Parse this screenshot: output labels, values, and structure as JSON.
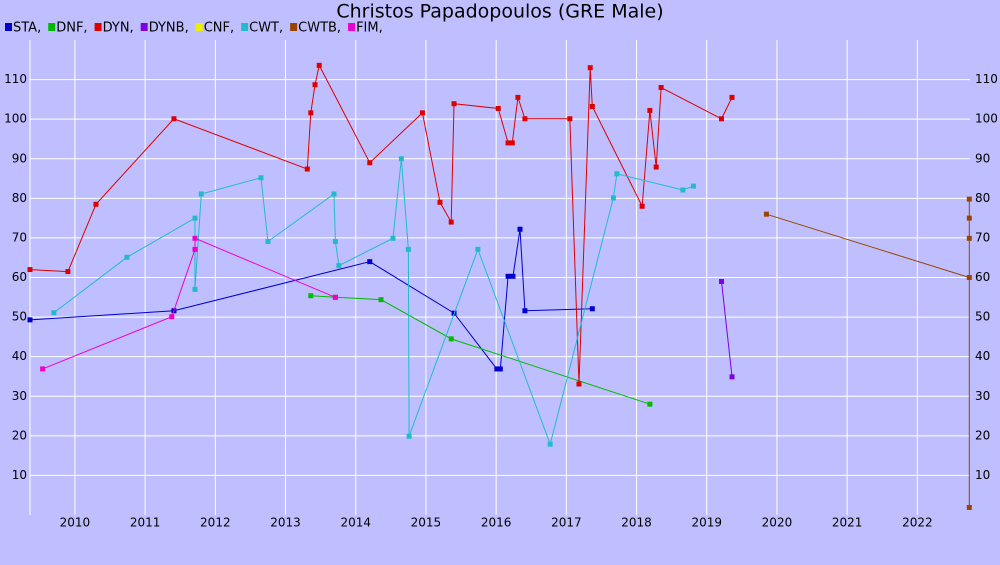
{
  "chart_data": {
    "type": "line",
    "title": "Christos Papadopoulos (GRE Male)",
    "xlim": [
      2009.36,
      2022.75
    ],
    "ylim": [
      0,
      120
    ],
    "xticks": [
      2010,
      2011,
      2012,
      2013,
      2014,
      2015,
      2016,
      2017,
      2018,
      2019,
      2020,
      2021,
      2022
    ],
    "yticks": [
      10,
      20,
      30,
      40,
      50,
      60,
      70,
      80,
      90,
      100,
      110
    ],
    "grid": true,
    "series": [
      {
        "name": "STA,",
        "color": "#0000cc",
        "x": [
          2009.36,
          2011.41,
          2014.2,
          2015.4,
          2016.01,
          2016.06,
          2016.17,
          2016.24,
          2016.34,
          2016.41,
          2017.37
        ],
        "values": [
          49.3,
          51.6,
          64,
          51,
          36.9,
          36.9,
          60.3,
          60.3,
          72.2,
          51.6,
          52.1
        ]
      },
      {
        "name": "DNF,",
        "color": "#00bb00",
        "x": [
          2013.36,
          2013.71,
          2014.36,
          2015.36,
          2018.19
        ],
        "values": [
          55.4,
          55,
          54.4,
          44.5,
          28
        ]
      },
      {
        "name": "DYN,",
        "color": "#dd0000",
        "x": [
          2009.36,
          2009.9,
          2010.3,
          2011.41,
          2013.31,
          2013.36,
          2013.42,
          2013.48,
          2014.2,
          2014.95,
          2015.2,
          2015.36,
          2015.4,
          2016.03,
          2016.17,
          2016.23,
          2016.31,
          2016.41,
          2017.05,
          2017.18,
          2017.34,
          2017.37,
          2018.08,
          2018.19,
          2018.28,
          2018.35,
          2019.21,
          2019.36
        ],
        "values": [
          62,
          61.5,
          78.5,
          100.1,
          87.4,
          101.6,
          108.7,
          113.6,
          89,
          101.6,
          79,
          74,
          103.9,
          102.7,
          94,
          94,
          105.5,
          100.1,
          100.1,
          33.1,
          113,
          103.2,
          78,
          102.2,
          87.9,
          108,
          100.1,
          105.5
        ]
      },
      {
        "name": "DYNB,",
        "color": "#7f00e0",
        "x": [
          2019.21,
          2019.36
        ],
        "values": [
          59,
          34.9
        ]
      },
      {
        "name": "CNF,",
        "color": "#eeee00",
        "x": [],
        "values": []
      },
      {
        "name": "CWT,",
        "color": "#22bbcc",
        "x": [
          2009.7,
          2010.74,
          2011.71,
          2011.71,
          2011.8,
          2012.65,
          2012.75,
          2013.69,
          2013.71,
          2013.76,
          2014.53,
          2014.65,
          2014.75,
          2014.76,
          2015.74,
          2016.77,
          2017.67,
          2017.72,
          2018.66,
          2018.81
        ],
        "values": [
          51.1,
          65.1,
          75,
          57,
          81.1,
          85.2,
          69.1,
          81.1,
          69.1,
          63,
          69.9,
          90,
          67.1,
          19.9,
          67.1,
          17.9,
          80.1,
          86.2,
          82.1,
          83.1
        ]
      },
      {
        "name": "CWTB,",
        "color": "#994400",
        "x": [
          2019.85,
          2022.74,
          2022.74,
          2022.74,
          2022.74,
          2022.74
        ],
        "values": [
          76,
          60,
          1.9,
          69.9,
          75,
          79.8
        ]
      },
      {
        "name": "FIM,",
        "color": "#ee00cc",
        "x": [
          2009.54,
          2011.38,
          2011.71,
          2011.71,
          2013.71
        ],
        "values": [
          36.9,
          50.1,
          67.1,
          69.9,
          55
        ]
      }
    ]
  }
}
